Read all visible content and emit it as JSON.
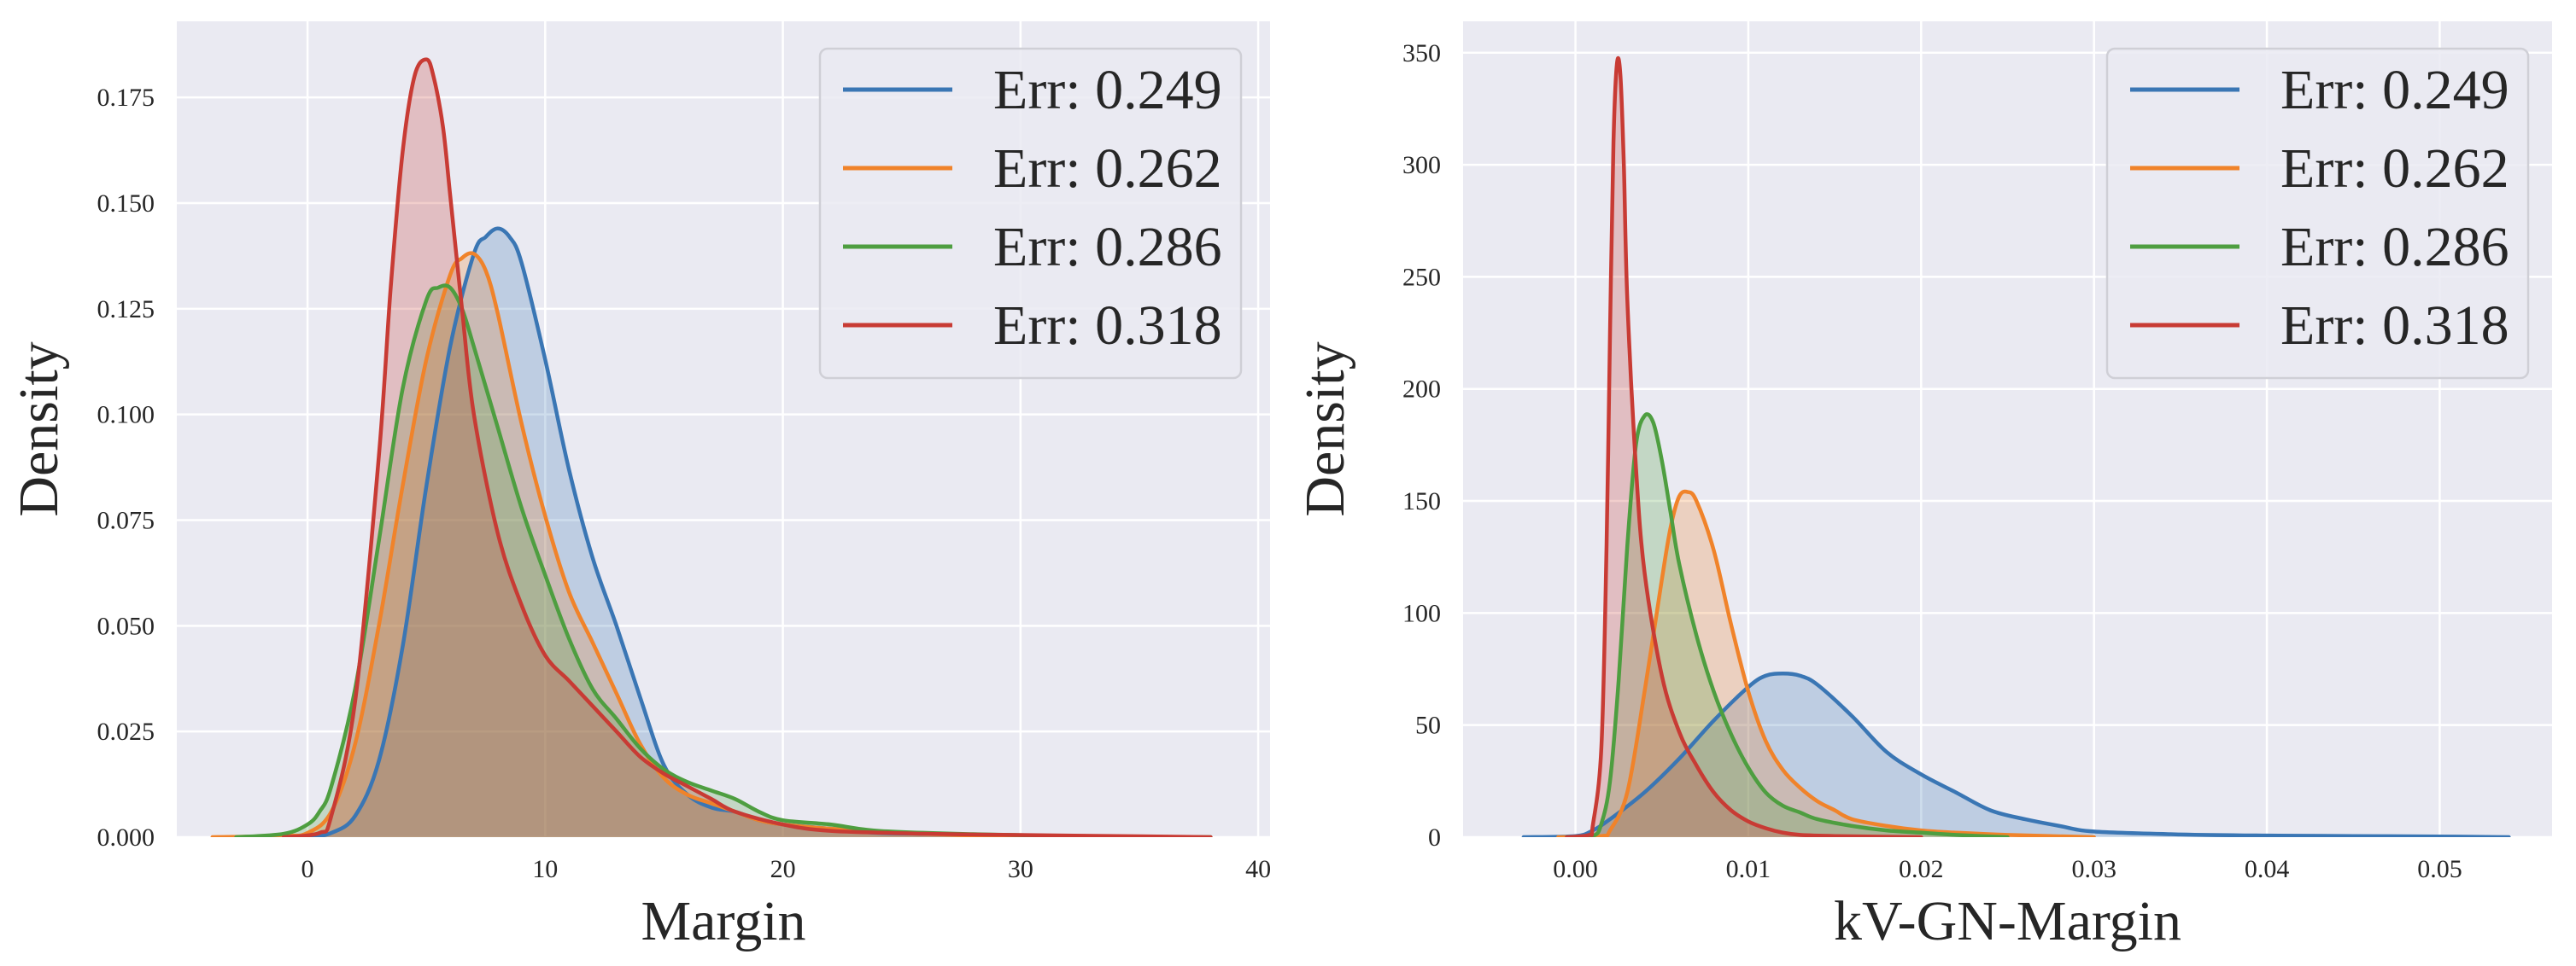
{
  "chart_data": [
    {
      "type": "area",
      "xlabel": "Margin",
      "ylabel": "Density",
      "xlim": [
        -5.5,
        40.5
      ],
      "ylim": [
        0,
        0.193
      ],
      "xticks": [
        0,
        10,
        20,
        30,
        40
      ],
      "xtick_labels": [
        "0",
        "10",
        "20",
        "30",
        "40"
      ],
      "yticks": [
        0.0,
        0.025,
        0.05,
        0.075,
        0.1,
        0.125,
        0.15,
        0.175
      ],
      "ytick_labels": [
        "0.000",
        "0.025",
        "0.050",
        "0.075",
        "0.100",
        "0.125",
        "0.150",
        "0.175"
      ],
      "grid": true,
      "legend_position": "top-right",
      "series": [
        {
          "name": "Err: 0.249",
          "color": "#3a76b4",
          "x": [
            -1,
            0,
            1,
            2,
            3,
            4,
            5,
            6,
            7,
            7.5,
            8,
            8.5,
            9,
            10,
            11,
            12,
            13,
            14,
            15,
            16,
            17,
            18,
            19,
            20,
            22,
            24,
            26,
            30,
            36
          ],
          "y": [
            0,
            0,
            0.001,
            0.005,
            0.018,
            0.045,
            0.083,
            0.116,
            0.138,
            0.142,
            0.144,
            0.142,
            0.136,
            0.113,
            0.087,
            0.066,
            0.05,
            0.033,
            0.017,
            0.01,
            0.007,
            0.006,
            0.004,
            0.003,
            0.002,
            0.001,
            0.0008,
            0.0004,
            0
          ]
        },
        {
          "name": "Err: 0.262",
          "color": "#f0832a",
          "x": [
            -4,
            -1,
            0,
            1,
            2,
            3,
            4,
            5,
            6,
            6.5,
            7,
            7.5,
            8,
            9,
            10,
            11,
            12,
            13,
            14,
            15,
            16,
            17,
            18,
            19,
            20,
            22,
            25,
            30
          ],
          "y": [
            0,
            0.0003,
            0.001,
            0.006,
            0.022,
            0.05,
            0.083,
            0.113,
            0.133,
            0.137,
            0.138,
            0.134,
            0.124,
            0.098,
            0.076,
            0.058,
            0.046,
            0.034,
            0.022,
            0.014,
            0.01,
            0.008,
            0.006,
            0.004,
            0.003,
            0.002,
            0.001,
            0
          ]
        },
        {
          "name": "Err: 0.286",
          "color": "#4e9e40",
          "x": [
            -3,
            -1,
            0,
            0.5,
            1,
            2,
            3,
            4,
            5,
            5.5,
            6,
            6.5,
            7,
            8,
            9,
            10,
            11,
            12,
            13,
            14,
            15,
            16,
            17,
            18,
            19,
            20,
            22,
            24,
            28,
            33,
            38
          ],
          "y": [
            0,
            0.0008,
            0.003,
            0.006,
            0.012,
            0.035,
            0.07,
            0.106,
            0.127,
            0.13,
            0.13,
            0.125,
            0.116,
            0.097,
            0.078,
            0.062,
            0.047,
            0.035,
            0.028,
            0.021,
            0.016,
            0.013,
            0.011,
            0.009,
            0.006,
            0.004,
            0.003,
            0.0015,
            0.0007,
            0.0002,
            0
          ]
        },
        {
          "name": "Err: 0.318",
          "color": "#c83b34",
          "x": [
            -1,
            0.5,
            1,
            2,
            3,
            3.5,
            4,
            4.5,
            5,
            5.3,
            5.7,
            6,
            6.5,
            7,
            8,
            9,
            10,
            11,
            12,
            13,
            14,
            15,
            16,
            17,
            18,
            20,
            22,
            26,
            30,
            35,
            38
          ],
          "y": [
            0,
            0.001,
            0.005,
            0.032,
            0.09,
            0.13,
            0.162,
            0.18,
            0.184,
            0.18,
            0.168,
            0.152,
            0.125,
            0.1,
            0.072,
            0.055,
            0.043,
            0.037,
            0.031,
            0.025,
            0.019,
            0.015,
            0.012,
            0.009,
            0.006,
            0.003,
            0.0015,
            0.0008,
            0.0005,
            0.0002,
            0
          ]
        }
      ]
    },
    {
      "type": "area",
      "xlabel": "kV-GN-Margin",
      "ylabel": "Density",
      "xlim": [
        -0.0065,
        0.0565
      ],
      "ylim": [
        0,
        364
      ],
      "xticks": [
        0.0,
        0.01,
        0.02,
        0.03,
        0.04,
        0.05
      ],
      "xtick_labels": [
        "0.00",
        "0.01",
        "0.02",
        "0.03",
        "0.04",
        "0.05"
      ],
      "yticks": [
        0,
        50,
        100,
        150,
        200,
        250,
        300,
        350
      ],
      "ytick_labels": [
        "0",
        "50",
        "100",
        "150",
        "200",
        "250",
        "300",
        "350"
      ],
      "grid": true,
      "legend_position": "top-right",
      "series": [
        {
          "name": "Err: 0.249",
          "color": "#3a76b4",
          "x": [
            -0.003,
            0.0,
            0.001,
            0.002,
            0.004,
            0.006,
            0.008,
            0.01,
            0.011,
            0.012,
            0.013,
            0.014,
            0.016,
            0.018,
            0.02,
            0.022,
            0.024,
            0.026,
            0.028,
            0.03,
            0.035,
            0.04,
            0.045,
            0.05,
            0.054
          ],
          "y": [
            0,
            0.5,
            3,
            8,
            20,
            35,
            52,
            67,
            72,
            73,
            72,
            68,
            54,
            38,
            28,
            20,
            12,
            8,
            5,
            2.5,
            1.2,
            0.7,
            0.5,
            0.3,
            0
          ]
        },
        {
          "name": "Err: 0.262",
          "color": "#f0832a",
          "x": [
            -0.001,
            0.0015,
            0.002,
            0.003,
            0.004,
            0.005,
            0.0055,
            0.006,
            0.0065,
            0.007,
            0.008,
            0.009,
            0.01,
            0.011,
            0.012,
            0.013,
            0.014,
            0.015,
            0.016,
            0.018,
            0.02,
            0.022,
            0.025,
            0.03
          ],
          "y": [
            0,
            0.5,
            3,
            20,
            65,
            115,
            138,
            152,
            154,
            150,
            128,
            95,
            65,
            43,
            30,
            22,
            16,
            12,
            8,
            5,
            3,
            2,
            1,
            0
          ]
        },
        {
          "name": "Err: 0.286",
          "color": "#4e9e40",
          "x": [
            -0.0005,
            0.001,
            0.0015,
            0.002,
            0.0025,
            0.003,
            0.0035,
            0.004,
            0.0045,
            0.005,
            0.0055,
            0.006,
            0.007,
            0.008,
            0.009,
            0.01,
            0.011,
            0.012,
            0.013,
            0.014,
            0.016,
            0.018,
            0.02,
            0.022,
            0.025
          ],
          "y": [
            0,
            0.5,
            6,
            25,
            70,
            130,
            175,
            188,
            185,
            168,
            145,
            122,
            90,
            65,
            46,
            31,
            20,
            14,
            11,
            8,
            5,
            3,
            2,
            1,
            0
          ]
        },
        {
          "name": "Err: 0.318",
          "color": "#c83b34",
          "x": [
            -0.0005,
            0.0008,
            0.001,
            0.0015,
            0.0018,
            0.002,
            0.0022,
            0.0024,
            0.0026,
            0.0028,
            0.003,
            0.0035,
            0.004,
            0.005,
            0.006,
            0.007,
            0.008,
            0.009,
            0.01,
            0.011,
            0.012,
            0.013,
            0.015,
            0.02
          ],
          "y": [
            0,
            1,
            5,
            40,
            130,
            225,
            310,
            345,
            340,
            300,
            240,
            165,
            118,
            72,
            47,
            32,
            20,
            12,
            7,
            4,
            2,
            1,
            0.5,
            0
          ]
        }
      ]
    }
  ]
}
